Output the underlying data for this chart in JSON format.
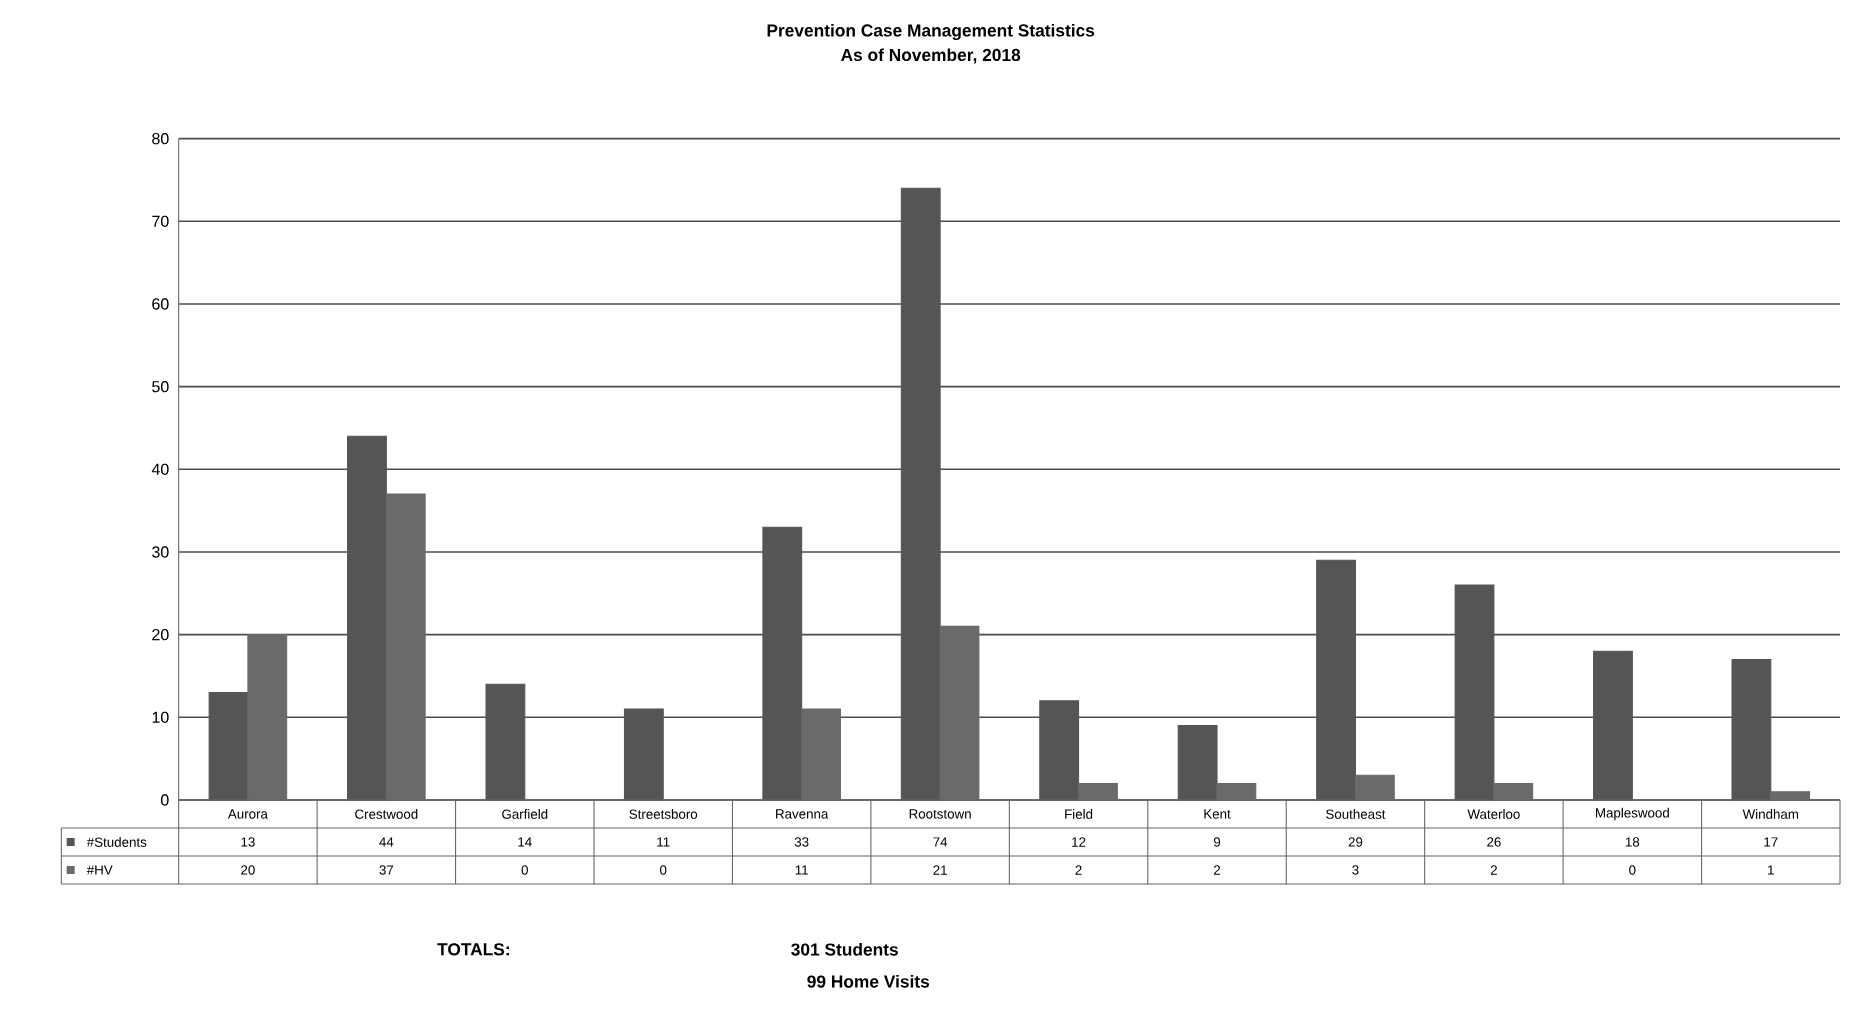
{
  "chart_data": {
    "type": "bar",
    "title": "Prevention Case Management Statistics",
    "subtitle": "As of November, 2018",
    "categories": [
      "Aurora",
      "Crestwood",
      "Garfield",
      "Streetsboro",
      "Ravenna",
      "Rootstown",
      "Field",
      "Kent",
      "Southeast",
      "Waterloo",
      "Mapleswood",
      "Windham"
    ],
    "series": [
      {
        "name": "#Students",
        "color": "#555555",
        "values": [
          13,
          44,
          14,
          11,
          33,
          74,
          12,
          9,
          29,
          26,
          18,
          17
        ]
      },
      {
        "name": "#HV",
        "color": "#6a6a6a",
        "values": [
          20,
          37,
          0,
          0,
          11,
          21,
          2,
          2,
          3,
          2,
          0,
          1
        ]
      }
    ],
    "ylim": [
      0,
      80
    ],
    "yticks": [
      0,
      10,
      20,
      30,
      40,
      50,
      60,
      70,
      80
    ],
    "grid": "y",
    "legend": "bottom",
    "data_labels": true,
    "annotations": [
      "TOTALS:",
      "301 Students",
      "99 Home Visits"
    ]
  }
}
